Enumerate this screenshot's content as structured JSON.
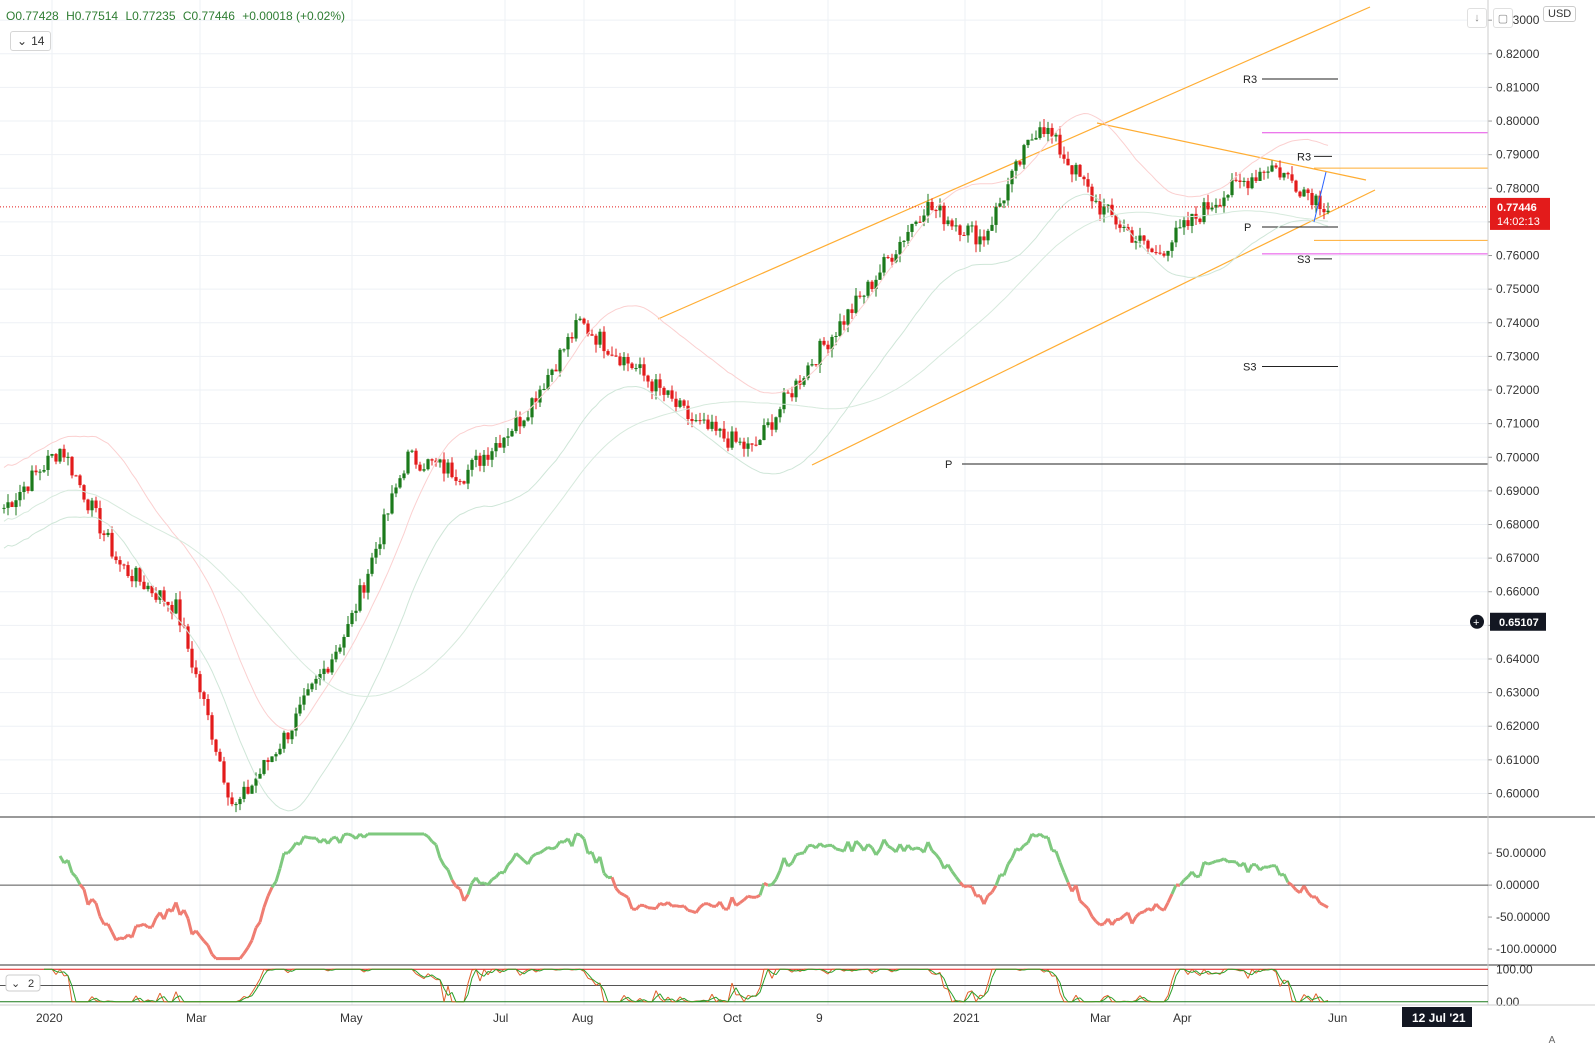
{
  "legend": {
    "open": "O0.77428",
    "high": "H0.77514",
    "low": "L0.77235",
    "close": "C0.77446",
    "change": "+0.00018 (+0.02%)",
    "length_value": "14"
  },
  "toolbar": {
    "currency": "USD",
    "auto_label": "A"
  },
  "icons": {
    "down": "arrow-down-icon",
    "fullscreen": "fullscreen-icon",
    "collapse": "chevron-down-icon",
    "crosshair": "plus-circle-icon"
  },
  "colors": {
    "up": "#1b7a1b",
    "down": "#e31b1b",
    "channel": "#ffad33",
    "magenta": "#e64ce6",
    "price_badge": "#e31b1b"
  },
  "chart_data": {
    "type": "candlestick",
    "symbol_currency": "USD",
    "x_ticks": [
      "2020",
      "Mar",
      "May",
      "Jul",
      "Aug",
      "Oct",
      "9",
      "2021",
      "Mar",
      "Apr",
      "Jun",
      "12 Jul '21"
    ],
    "y_ticks": [
      "0.83000",
      "0.82000",
      "0.81000",
      "0.80000",
      "0.79000",
      "0.78000",
      "0.77000",
      "0.76000",
      "0.75000",
      "0.74000",
      "0.73000",
      "0.72000",
      "0.71000",
      "0.70000",
      "0.69000",
      "0.68000",
      "0.67000",
      "0.66000",
      "0.65000",
      "0.64000",
      "0.63000",
      "0.62000",
      "0.61000",
      "0.60000"
    ],
    "ylim": [
      0.593,
      0.836
    ],
    "last_price": "0.77446",
    "countdown": "14:02:13",
    "crosshair_price": "0.65107",
    "price_path": [
      {
        "x": "2020-01",
        "y": 0.685
      },
      {
        "x": "2020-01-mid",
        "y": 0.703
      },
      {
        "x": "2020-02",
        "y": 0.668
      },
      {
        "x": "2020-03",
        "y": 0.655
      },
      {
        "x": "2020-03-late",
        "y": 0.595
      },
      {
        "x": "2020-04",
        "y": 0.62
      },
      {
        "x": "2020-05",
        "y": 0.65
      },
      {
        "x": "2020-06",
        "y": 0.7
      },
      {
        "x": "2020-07",
        "y": 0.695
      },
      {
        "x": "2020-07-late",
        "y": 0.712
      },
      {
        "x": "2020-08",
        "y": 0.74
      },
      {
        "x": "2020-09",
        "y": 0.726
      },
      {
        "x": "2020-10",
        "y": 0.71
      },
      {
        "x": "2020-10-late",
        "y": 0.702
      },
      {
        "x": "2020-11",
        "y": 0.728
      },
      {
        "x": "2020-12",
        "y": 0.75
      },
      {
        "x": "2021-01",
        "y": 0.775
      },
      {
        "x": "2021-02",
        "y": 0.765
      },
      {
        "x": "2021-02-late",
        "y": 0.8
      },
      {
        "x": "2021-03",
        "y": 0.775
      },
      {
        "x": "2021-04",
        "y": 0.76
      },
      {
        "x": "2021-04-late",
        "y": 0.776
      },
      {
        "x": "2021-05",
        "y": 0.787
      },
      {
        "x": "2021-05-late",
        "y": 0.7745
      }
    ],
    "pivot_labels": {
      "yearly": [
        {
          "label": "R3",
          "y": 0.8125
        },
        {
          "label": "P",
          "y": 0.698
        },
        {
          "label": "S3",
          "y": 0.727
        }
      ],
      "monthly": [
        {
          "label": "R3",
          "y": 0.7895
        },
        {
          "label": "P",
          "y": 0.7685
        },
        {
          "label": "S3",
          "y": 0.759
        }
      ]
    },
    "horizontal_levels": [
      {
        "color": "magenta",
        "y": 0.7965
      },
      {
        "color": "orange",
        "y": 0.786
      },
      {
        "color": "orange",
        "y": 0.7645
      },
      {
        "color": "magenta",
        "y": 0.7605
      }
    ],
    "oscillator": {
      "y_ticks": [
        "50.00000",
        "0.00000",
        "-50.00000",
        "-100.00000"
      ],
      "ylim": [
        -125,
        105
      ]
    },
    "stoch": {
      "label": "2",
      "y_ticks": [
        "100.00",
        "0.00"
      ],
      "ylim": [
        -10,
        110
      ]
    }
  }
}
